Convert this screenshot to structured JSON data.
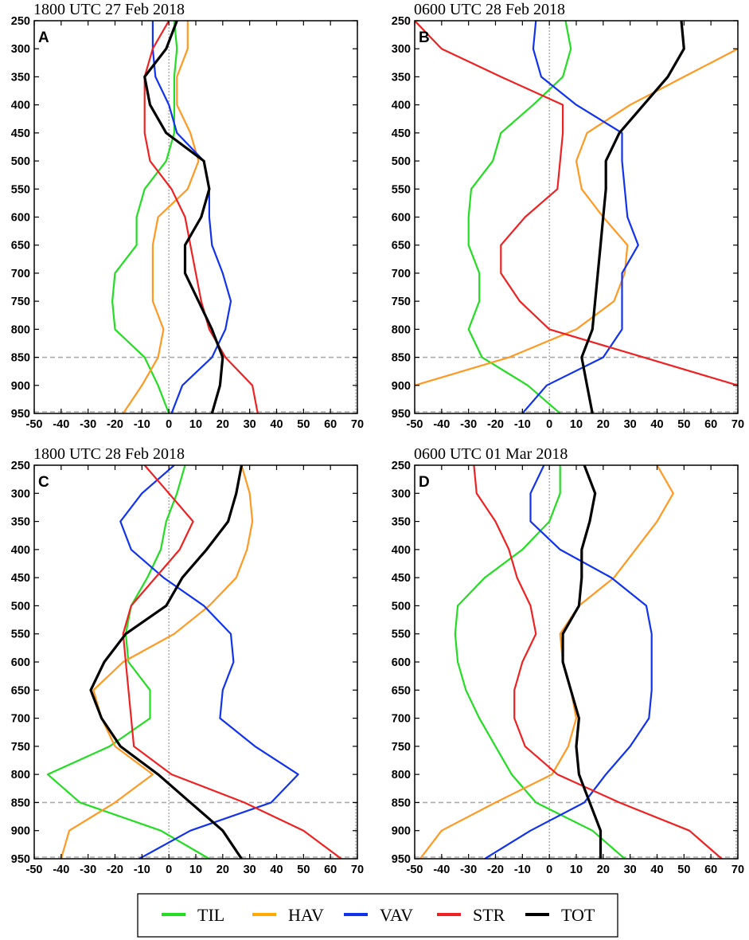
{
  "colors": {
    "TIL": "#22dd22",
    "HAV": "#ff9922",
    "VAV": "#1133ee",
    "STR": "#ee2222",
    "TOT": "#000000",
    "legend_HAV": "#ffaa00"
  },
  "legend": [
    {
      "key": "TIL",
      "label": "TIL"
    },
    {
      "key": "HAV",
      "label": "HAV"
    },
    {
      "key": "VAV",
      "label": "VAV"
    },
    {
      "key": "STR",
      "label": "STR"
    },
    {
      "key": "TOT",
      "label": "TOT"
    }
  ],
  "chart_data": [
    {
      "type": "line",
      "title": "1800 UTC 27 Feb 2018",
      "panel_letter": "A",
      "xlim": [
        -50,
        70
      ],
      "ylim": [
        950,
        250
      ],
      "x_ticks": [
        "-50",
        "-40",
        "-30",
        "-20",
        "-10",
        "0",
        "10",
        "20",
        "30",
        "40",
        "50",
        "60",
        "70"
      ],
      "y_ticks": [
        "250",
        "300",
        "350",
        "400",
        "450",
        "500",
        "550",
        "600",
        "650",
        "700",
        "750",
        "800",
        "850",
        "900",
        "950"
      ],
      "reference_line_y": 850,
      "levels": [
        250,
        300,
        350,
        400,
        450,
        500,
        550,
        600,
        650,
        700,
        750,
        800,
        850,
        900,
        950
      ],
      "series": [
        {
          "key": "TIL",
          "values": [
            2,
            3,
            2,
            2,
            2,
            -1,
            -9,
            -12,
            -12,
            -20,
            -21,
            -20,
            -9,
            -4,
            0
          ]
        },
        {
          "key": "HAV",
          "values": [
            7,
            7,
            3,
            3,
            8,
            11,
            7,
            -4,
            -6,
            -6,
            -6,
            -2,
            -4,
            -10,
            -17
          ]
        },
        {
          "key": "VAV",
          "values": [
            -6,
            -6,
            -5,
            0,
            3,
            13,
            15,
            15,
            16,
            20,
            23,
            21,
            16,
            5,
            1
          ]
        },
        {
          "key": "STR",
          "values": [
            0,
            -6,
            -9,
            -9,
            -9,
            -7,
            1,
            6,
            8,
            10,
            12,
            15,
            21,
            31,
            33
          ]
        },
        {
          "key": "TOT",
          "values": [
            3,
            -1,
            -9,
            -7,
            -1,
            13,
            15,
            12,
            6,
            6,
            11,
            16,
            20,
            19,
            16
          ]
        }
      ]
    },
    {
      "type": "line",
      "title": "0600 UTC 28 Feb 2018",
      "panel_letter": "B",
      "xlim": [
        -50,
        70
      ],
      "ylim": [
        950,
        250
      ],
      "x_ticks": [
        "-50",
        "-40",
        "-30",
        "-20",
        "-10",
        "0",
        "10",
        "20",
        "30",
        "40",
        "50",
        "60",
        "70"
      ],
      "y_ticks": [
        "250",
        "300",
        "350",
        "400",
        "450",
        "500",
        "550",
        "600",
        "650",
        "700",
        "750",
        "800",
        "850",
        "900",
        "950"
      ],
      "reference_line_y": 850,
      "levels": [
        250,
        300,
        350,
        400,
        450,
        500,
        550,
        600,
        650,
        700,
        750,
        800,
        850,
        900,
        950
      ],
      "series": [
        {
          "key": "TIL",
          "values": [
            6,
            8,
            5,
            -6,
            -18,
            -21,
            -29,
            -30,
            -30,
            -26,
            -26,
            -30,
            -25,
            -8,
            4
          ]
        },
        {
          "key": "HAV",
          "values": [
            80,
            70,
            50,
            30,
            14,
            10,
            12,
            20,
            29,
            28,
            24,
            10,
            -15,
            -50,
            -80
          ]
        },
        {
          "key": "VAV",
          "values": [
            -5,
            -6,
            -3,
            10,
            27,
            27,
            28,
            29,
            33,
            27,
            27,
            27,
            20,
            -1,
            -10
          ]
        },
        {
          "key": "STR",
          "values": [
            -50,
            -40,
            -18,
            5,
            5,
            4,
            3,
            -9,
            -18,
            -18,
            -11,
            0,
            35,
            70,
            100
          ]
        },
        {
          "key": "TOT",
          "values": [
            49,
            50,
            44,
            35,
            26,
            21,
            21,
            20,
            19,
            18,
            17,
            16,
            12,
            14,
            16
          ]
        }
      ]
    },
    {
      "type": "line",
      "title": "1800 UTC 28 Feb 2018",
      "panel_letter": "C",
      "xlim": [
        -50,
        70
      ],
      "ylim": [
        950,
        250
      ],
      "x_ticks": [
        "-50",
        "-40",
        "-30",
        "-20",
        "-10",
        "0",
        "10",
        "20",
        "30",
        "40",
        "50",
        "60",
        "70"
      ],
      "y_ticks": [
        "250",
        "300",
        "350",
        "400",
        "450",
        "500",
        "550",
        "600",
        "650",
        "700",
        "750",
        "800",
        "850",
        "900",
        "950"
      ],
      "reference_line_y": 850,
      "levels": [
        250,
        300,
        350,
        400,
        450,
        500,
        550,
        600,
        650,
        700,
        750,
        800,
        850,
        900,
        950
      ],
      "series": [
        {
          "key": "TIL",
          "values": [
            6,
            3,
            -1,
            -3,
            -8,
            -14,
            -16,
            -15,
            -7,
            -7,
            -22,
            -45,
            -33,
            -3,
            15
          ]
        },
        {
          "key": "HAV",
          "values": [
            27,
            30,
            31,
            29,
            25,
            15,
            2,
            -17,
            -28,
            -25,
            -20,
            -6,
            -20,
            -37,
            -40
          ]
        },
        {
          "key": "VAV",
          "values": [
            2,
            -10,
            -18,
            -14,
            -2,
            13,
            23,
            24,
            20,
            19,
            32,
            48,
            38,
            8,
            -11
          ]
        },
        {
          "key": "STR",
          "values": [
            -9,
            0,
            9,
            4,
            -5,
            -14,
            -17,
            -16,
            -15,
            -14,
            -13,
            1,
            28,
            50,
            64
          ]
        },
        {
          "key": "TOT",
          "values": [
            27,
            25,
            22,
            14,
            5,
            -1,
            -16,
            -24,
            -29,
            -25,
            -18,
            -4,
            8,
            20,
            27
          ]
        }
      ]
    },
    {
      "type": "line",
      "title": "0600 UTC 01 Mar 2018",
      "panel_letter": "D",
      "xlim": [
        -50,
        70
      ],
      "ylim": [
        950,
        250
      ],
      "x_ticks": [
        "-50",
        "-40",
        "-30",
        "-20",
        "-10",
        "0",
        "10",
        "20",
        "30",
        "40",
        "50",
        "60",
        "70"
      ],
      "y_ticks": [
        "250",
        "300",
        "350",
        "400",
        "450",
        "500",
        "550",
        "600",
        "650",
        "700",
        "750",
        "800",
        "850",
        "900",
        "950"
      ],
      "reference_line_y": 850,
      "levels": [
        250,
        300,
        350,
        400,
        450,
        500,
        550,
        600,
        650,
        700,
        750,
        800,
        850,
        900,
        950
      ],
      "series": [
        {
          "key": "TIL",
          "values": [
            4,
            4,
            0,
            -10,
            -24,
            -34,
            -35,
            -34,
            -31,
            -26,
            -20,
            -14,
            -5,
            16,
            28
          ]
        },
        {
          "key": "HAV",
          "values": [
            40,
            46,
            40,
            32,
            24,
            11,
            4,
            5,
            8,
            10,
            7,
            1,
            -20,
            -40,
            -48
          ]
        },
        {
          "key": "VAV",
          "values": [
            -2,
            -7,
            -7,
            4,
            23,
            36,
            38,
            38,
            38,
            37,
            30,
            21,
            13,
            -7,
            -24
          ]
        },
        {
          "key": "STR",
          "values": [
            -28,
            -27,
            -20,
            -15,
            -12,
            -7,
            -5,
            -10,
            -13,
            -13,
            -9,
            3,
            26,
            52,
            64
          ]
        },
        {
          "key": "TOT",
          "values": [
            13,
            17,
            15,
            12,
            12,
            11,
            5,
            5,
            8,
            11,
            10,
            11,
            15,
            19,
            19
          ]
        }
      ]
    }
  ]
}
